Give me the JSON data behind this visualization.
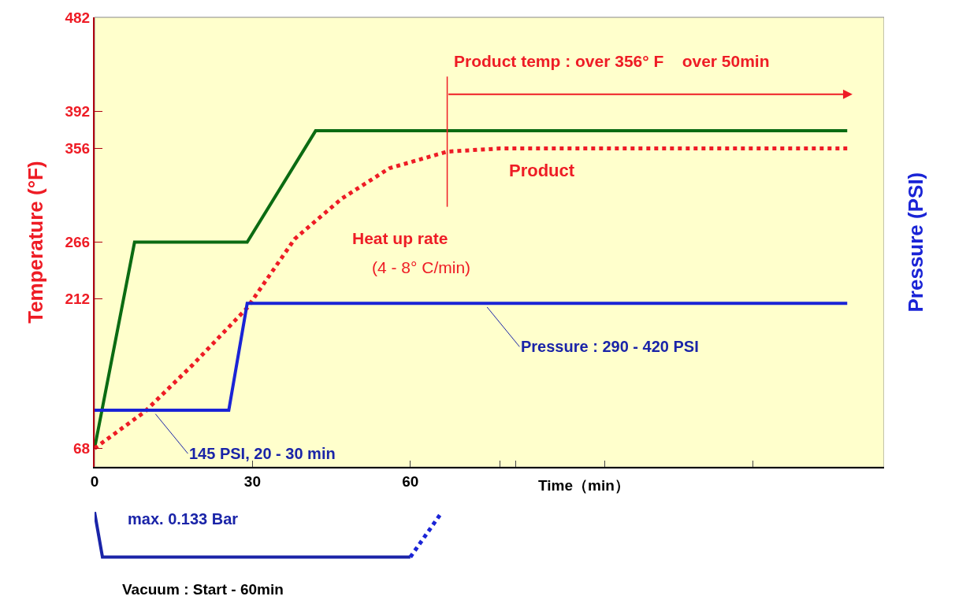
{
  "chart_data": {
    "type": "line",
    "xlabel": "Time（min）",
    "ylabel": "Temperature (°F)",
    "y2label": "Pressure (PSI)",
    "xlim": [
      0,
      150
    ],
    "xticks": [
      0,
      30,
      60,
      {
        "value": 77,
        "label": null
      },
      {
        "value": 80,
        "label": null
      },
      {
        "value": 97,
        "label": null
      },
      {
        "value": 125,
        "label": null
      }
    ],
    "ylim": [
      50,
      482
    ],
    "yticks": [
      68,
      212,
      266,
      356,
      392,
      482
    ],
    "y2lim": [
      68,
      678
    ],
    "grid": false,
    "legend": false,
    "marker": "none",
    "series": [
      {
        "color": "#0b6b12",
        "x": [
          0,
          7.6,
          29,
          42,
          143
        ],
        "values": [
          68,
          266,
          266,
          373,
          373
        ],
        "line_style": "solid"
      },
      {
        "name": "Product",
        "color": "#ee1c25",
        "x": [
          0,
          9.5,
          18.6,
          29,
          38,
          47,
          56,
          67,
          77,
          143
        ],
        "values": [
          68,
          103,
          148,
          203,
          269,
          308,
          337,
          353,
          356,
          356
        ],
        "line_style": "dotted"
      },
      {
        "color": "#1a24d6",
        "axis": "y2",
        "x": [
          0,
          11,
          25.5,
          29,
          74,
          143
        ],
        "values": [
          145,
          145,
          145,
          290,
          290,
          290
        ],
        "value_labels": [
          null,
          "145 PSI, 20 - 30 min",
          null,
          null,
          "Pressure : 290 - 420 PSI",
          null
        ],
        "line_style": "solid"
      }
    ],
    "ref_lines": [
      {
        "axis": "x",
        "value": 67,
        "label": "Product temp : over 356° F    over 50min",
        "color": "#ee1c25"
      }
    ],
    "annotations": [
      "Heat up rate",
      "(4 - 8° C/min)",
      "max. 0.133 Bar",
      "Vacuum : Start - 60min"
    ]
  }
}
